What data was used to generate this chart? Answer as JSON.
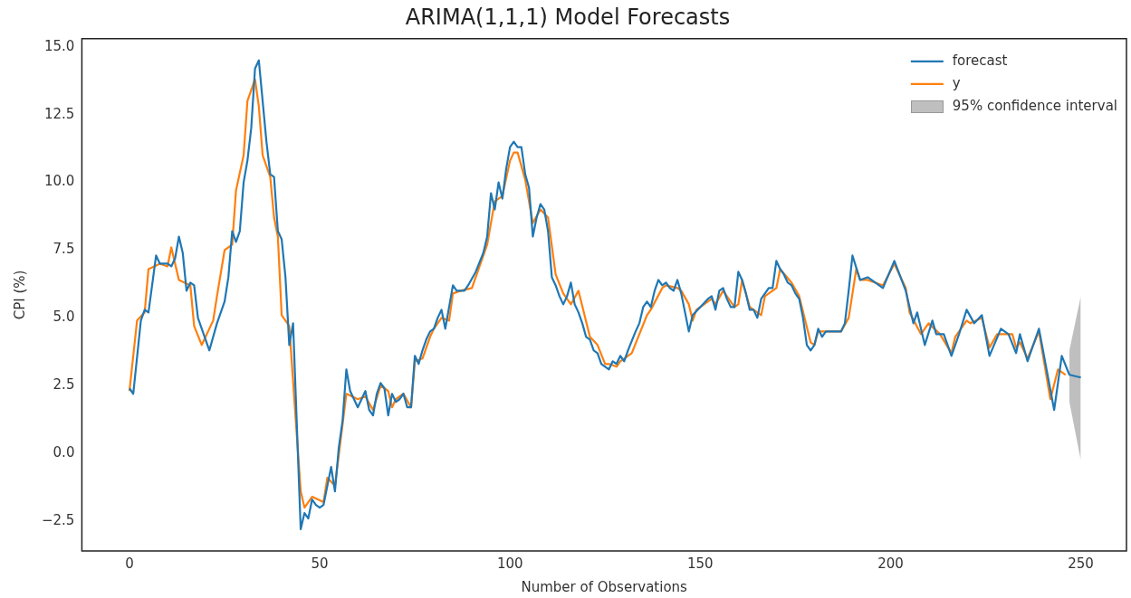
{
  "chart_data": {
    "type": "line",
    "title": "ARIMA(1,1,1) Model Forecasts",
    "xlabel": "Number of Observations",
    "ylabel": "CPI (%)",
    "xlim": [
      -12.5,
      262
    ],
    "xticks": [
      0,
      50,
      100,
      150,
      200,
      250
    ],
    "ylim": [
      -3.6,
      15.3
    ],
    "yticks": [
      {
        "value": -2.5,
        "label": "−2.5"
      },
      {
        "value": 0,
        "label": "0.0"
      },
      {
        "value": 2.5,
        "label": "2.5"
      },
      {
        "value": 5,
        "label": "5.0"
      },
      {
        "value": 7.5,
        "label": "7.5"
      },
      {
        "value": 10,
        "label": "10.0"
      },
      {
        "value": 12.5,
        "label": "12.5"
      },
      {
        "value": 15,
        "label": "15.0"
      }
    ],
    "grid": false,
    "legend": "top right",
    "marker": "none",
    "line_style": "solid",
    "annotations": [
      "95% confidence interval"
    ],
    "series": [
      {
        "name": "forecast",
        "color": "#1f77b4",
        "x": [
          0,
          1,
          3,
          4,
          5,
          7,
          8,
          10,
          11,
          12,
          13,
          14,
          15,
          16,
          17,
          18,
          20,
          21,
          23,
          25,
          26,
          27,
          28,
          29,
          30,
          31,
          32,
          33,
          34,
          35,
          36,
          37,
          38,
          39,
          40,
          41,
          42,
          43,
          44,
          45,
          46,
          47,
          48,
          49,
          50,
          51,
          52,
          53,
          54,
          55,
          56,
          57,
          58,
          59,
          60,
          61,
          62,
          63,
          64,
          65,
          66,
          67,
          68,
          69,
          70,
          71,
          72,
          73,
          74,
          75,
          76,
          77,
          78,
          79,
          80,
          81,
          82,
          83,
          84,
          85,
          86,
          88,
          89,
          91,
          93,
          94,
          95,
          96,
          97,
          98,
          99,
          100,
          101,
          102,
          103,
          104,
          105,
          106,
          107,
          108,
          109,
          110,
          111,
          112,
          113,
          114,
          115,
          116,
          117,
          118,
          119,
          120,
          121,
          122,
          123,
          124,
          125,
          126,
          127,
          128,
          129,
          130,
          131,
          133,
          134,
          135,
          136,
          137,
          138,
          139,
          140,
          141,
          142,
          143,
          144,
          145,
          146,
          147,
          148,
          150,
          152,
          153,
          154,
          155,
          156,
          157,
          158,
          159,
          160,
          161,
          162,
          163,
          164,
          165,
          166,
          167,
          168,
          169,
          170,
          171,
          172,
          173,
          174,
          175,
          176,
          177,
          178,
          179,
          180,
          181,
          182,
          183,
          185,
          187,
          188,
          189,
          190,
          192,
          194,
          196,
          198,
          201,
          204,
          206,
          207,
          209,
          211,
          212,
          214,
          216,
          218,
          220,
          222,
          224,
          226,
          229,
          231,
          233,
          234,
          236,
          239,
          243,
          245,
          247,
          250
        ],
        "values": [
          2.4,
          2.2,
          4.9,
          5.3,
          5.2,
          7.3,
          7.0,
          7.0,
          6.9,
          7.2,
          8.0,
          7.4,
          6.0,
          6.3,
          6.2,
          5.0,
          4.2,
          3.8,
          4.8,
          5.6,
          6.5,
          8.2,
          7.8,
          8.2,
          10.0,
          10.8,
          12.0,
          14.2,
          14.5,
          13.0,
          11.5,
          10.3,
          10.2,
          8.2,
          7.9,
          6.5,
          4.0,
          4.8,
          1.0,
          -2.8,
          -2.2,
          -2.4,
          -1.7,
          -1.9,
          -2.0,
          -1.9,
          -1.2,
          -0.5,
          -1.4,
          0.2,
          1.2,
          3.1,
          2.3,
          2.0,
          1.7,
          2.0,
          2.3,
          1.6,
          1.4,
          2.2,
          2.6,
          2.4,
          1.4,
          2.2,
          1.9,
          2.0,
          2.2,
          1.7,
          1.7,
          3.6,
          3.3,
          3.8,
          4.2,
          4.5,
          4.6,
          5.0,
          5.3,
          4.6,
          5.4,
          6.2,
          6.0,
          6.0,
          6.2,
          6.7,
          7.4,
          8.0,
          9.6,
          9.0,
          10.0,
          9.4,
          10.5,
          11.3,
          11.5,
          11.3,
          11.3,
          10.3,
          9.8,
          8.0,
          8.7,
          9.2,
          9.0,
          8.2,
          6.5,
          6.2,
          5.8,
          5.5,
          5.8,
          6.3,
          5.5,
          5.2,
          4.8,
          4.3,
          4.2,
          3.8,
          3.7,
          3.3,
          3.2,
          3.1,
          3.4,
          3.3,
          3.6,
          3.4,
          3.8,
          4.5,
          4.8,
          5.4,
          5.6,
          5.4,
          6.0,
          6.4,
          6.2,
          6.3,
          6.1,
          6.0,
          6.4,
          5.9,
          5.2,
          4.5,
          5.1,
          5.4,
          5.7,
          5.8,
          5.3,
          6.0,
          6.1,
          5.7,
          5.4,
          5.4,
          6.7,
          6.4,
          5.9,
          5.3,
          5.3,
          5.0,
          5.7,
          5.9,
          6.1,
          6.1,
          7.1,
          6.8,
          6.6,
          6.3,
          6.2,
          5.9,
          5.7,
          5.0,
          4.0,
          3.8,
          4.0,
          4.6,
          4.3,
          4.5,
          4.5,
          4.5,
          4.8,
          6.0,
          7.3,
          6.4,
          6.5,
          6.3,
          6.1,
          7.1,
          6.0,
          4.8,
          5.2,
          4.0,
          4.9,
          4.4,
          4.4,
          3.6,
          4.4,
          5.3,
          4.8,
          5.1,
          3.6,
          4.6,
          4.4,
          3.7,
          4.4,
          3.4,
          4.6,
          1.6,
          3.6,
          2.9,
          2.8
        ],
        "lower": [
          null,
          null,
          null,
          null,
          null,
          null,
          null,
          null,
          null,
          null,
          null,
          null,
          null,
          null,
          null,
          null,
          null,
          null,
          null,
          null,
          null,
          null,
          null,
          null,
          null,
          null,
          null,
          null,
          null,
          null,
          null,
          null,
          null,
          null,
          null,
          null,
          null,
          null,
          null,
          null,
          null,
          null,
          null,
          null,
          null,
          null,
          null,
          null,
          null,
          null,
          null,
          null,
          null,
          null,
          null,
          null,
          null,
          null,
          null,
          null,
          null,
          null,
          null,
          null,
          null,
          null,
          null,
          null,
          null,
          null,
          null,
          null,
          null,
          null,
          null,
          null,
          null,
          null,
          null,
          null,
          null,
          null,
          null,
          null,
          null,
          null,
          null,
          null,
          null,
          null,
          null,
          null,
          null,
          null,
          null,
          null,
          null,
          null,
          null,
          null,
          null,
          null,
          null,
          null,
          null,
          null,
          null,
          null,
          null,
          null,
          null,
          null,
          null,
          null,
          null,
          null,
          null,
          null,
          null,
          null,
          null,
          null,
          null,
          null,
          null,
          null,
          null,
          null,
          null,
          null,
          null,
          null,
          null,
          null,
          null,
          null,
          null,
          null,
          null,
          null,
          null,
          null,
          null,
          null,
          null,
          null,
          null,
          null,
          null,
          null,
          null,
          null,
          null,
          null,
          null,
          null,
          null,
          null,
          null,
          null,
          null,
          null,
          null,
          null,
          null,
          null,
          null,
          null,
          null,
          null,
          null,
          null,
          null,
          null,
          null,
          null,
          null,
          null,
          null,
          null,
          null,
          null,
          null,
          null,
          null,
          null,
          null,
          null,
          null,
          null,
          null,
          null,
          null,
          null,
          null,
          null,
          null,
          null,
          null,
          null,
          null,
          null,
          null,
          1.9,
          -0.25
        ],
        "upper": [
          null,
          null,
          null,
          null,
          null,
          null,
          null,
          null,
          null,
          null,
          null,
          null,
          null,
          null,
          null,
          null,
          null,
          null,
          null,
          null,
          null,
          null,
          null,
          null,
          null,
          null,
          null,
          null,
          null,
          null,
          null,
          null,
          null,
          null,
          null,
          null,
          null,
          null,
          null,
          null,
          null,
          null,
          null,
          null,
          null,
          null,
          null,
          null,
          null,
          null,
          null,
          null,
          null,
          null,
          null,
          null,
          null,
          null,
          null,
          null,
          null,
          null,
          null,
          null,
          null,
          null,
          null,
          null,
          null,
          null,
          null,
          null,
          null,
          null,
          null,
          null,
          null,
          null,
          null,
          null,
          null,
          null,
          null,
          null,
          null,
          null,
          null,
          null,
          null,
          null,
          null,
          null,
          null,
          null,
          null,
          null,
          null,
          null,
          null,
          null,
          null,
          null,
          null,
          null,
          null,
          null,
          null,
          null,
          null,
          null,
          null,
          null,
          null,
          null,
          null,
          null,
          null,
          null,
          null,
          null,
          null,
          null,
          null,
          null,
          null,
          null,
          null,
          null,
          null,
          null,
          null,
          null,
          null,
          null,
          null,
          null,
          null,
          null,
          null,
          null,
          null,
          null,
          null,
          null,
          null,
          null,
          null,
          null,
          null,
          null,
          null,
          null,
          null,
          null,
          null,
          null,
          null,
          null,
          null,
          null,
          null,
          null,
          null,
          null,
          null,
          null,
          null,
          null,
          null,
          null,
          null,
          null,
          null,
          null,
          null,
          null,
          null,
          null,
          null,
          null,
          null,
          null,
          null,
          null,
          null,
          null,
          null,
          null,
          null,
          null,
          null,
          null,
          null,
          null,
          null,
          null,
          null,
          null,
          null,
          null,
          null,
          null,
          null,
          3.8,
          5.8
        ]
      },
      {
        "name": "y",
        "color": "#ff7f0e",
        "x": [
          0,
          2,
          4,
          5,
          8,
          10,
          11,
          13,
          16,
          17,
          19,
          22,
          23,
          25,
          27,
          28,
          30,
          31,
          33,
          34,
          35,
          37,
          38,
          39,
          40,
          42,
          45,
          46,
          48,
          51,
          52,
          54,
          57,
          60,
          62,
          64,
          66,
          68,
          69,
          70,
          72,
          74,
          75,
          77,
          79,
          80,
          82,
          84,
          85,
          87,
          90,
          92,
          94,
          96,
          98,
          100,
          101,
          102,
          104,
          106,
          108,
          110,
          112,
          114,
          116,
          118,
          121,
          123,
          125,
          126,
          128,
          129,
          130,
          132,
          134,
          136,
          137,
          140,
          141,
          144,
          145,
          147,
          148,
          149,
          153,
          154,
          156,
          159,
          160,
          161,
          163,
          166,
          167,
          170,
          171,
          174,
          176,
          179,
          180,
          181,
          183,
          187,
          189,
          191,
          192,
          194,
          198,
          201,
          204,
          205,
          208,
          210,
          213,
          216,
          217,
          220,
          221,
          224,
          226,
          228,
          232,
          233,
          234,
          236,
          239,
          242,
          244,
          246
        ],
        "values": [
          2.3,
          4.9,
          5.2,
          6.8,
          7.0,
          6.9,
          7.6,
          6.4,
          6.2,
          4.7,
          4.0,
          4.9,
          5.8,
          7.5,
          7.7,
          9.7,
          11.0,
          13.0,
          13.8,
          12.8,
          11.0,
          10.2,
          8.7,
          8.0,
          5.1,
          4.7,
          -1.4,
          -2.0,
          -1.6,
          -1.8,
          -0.9,
          -1.2,
          2.2,
          2.0,
          2.1,
          1.6,
          2.5,
          2.3,
          1.7,
          2.0,
          2.2,
          1.7,
          3.4,
          3.5,
          4.3,
          4.6,
          5.0,
          4.9,
          5.9,
          6.0,
          6.1,
          6.9,
          7.7,
          9.3,
          9.5,
          10.8,
          11.1,
          11.1,
          10.1,
          8.5,
          9.0,
          8.7,
          6.6,
          5.9,
          5.5,
          6.0,
          4.3,
          4.0,
          3.3,
          3.3,
          3.2,
          3.4,
          3.5,
          3.7,
          4.4,
          5.1,
          5.3,
          6.1,
          6.2,
          6.1,
          6.0,
          5.5,
          4.9,
          5.3,
          5.7,
          5.5,
          6.0,
          5.4,
          5.5,
          6.4,
          5.4,
          5.1,
          5.8,
          6.1,
          6.8,
          6.3,
          5.8,
          4.1,
          4.0,
          4.5,
          4.5,
          4.5,
          5.0,
          6.8,
          6.4,
          6.4,
          6.2,
          7.0,
          6.1,
          5.2,
          4.4,
          4.8,
          4.4,
          3.7,
          4.3,
          4.9,
          4.8,
          5.0,
          3.9,
          4.4,
          4.4,
          3.9,
          4.1,
          3.5,
          4.5,
          2.0,
          3.1,
          2.9
        ]
      }
    ]
  }
}
